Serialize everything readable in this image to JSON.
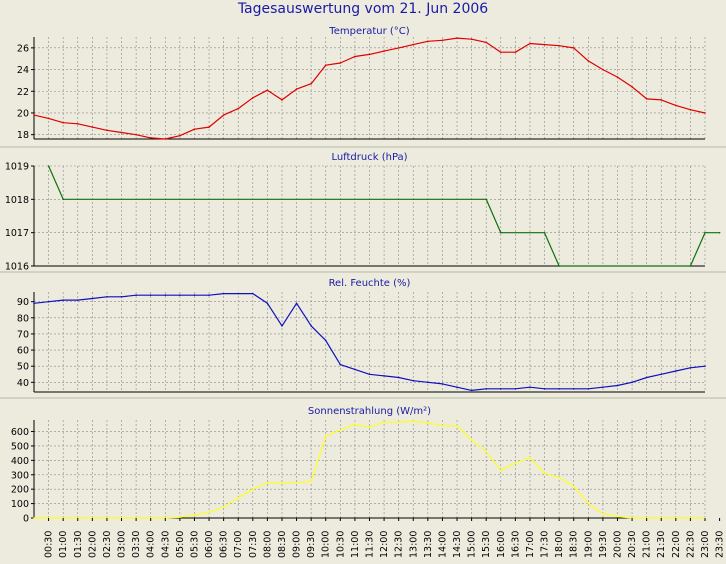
{
  "title": "Tagesauswertung vom 21. Jun 2006",
  "time_labels": [
    "00:30",
    "01:00",
    "01:30",
    "02:00",
    "02:30",
    "03:00",
    "03:30",
    "04:00",
    "04:30",
    "05:00",
    "05:30",
    "06:00",
    "06:30",
    "07:00",
    "07:30",
    "08:00",
    "08:30",
    "09:00",
    "09:30",
    "10:00",
    "10:30",
    "11:00",
    "11:30",
    "12:00",
    "12:30",
    "13:00",
    "13:30",
    "14:00",
    "14:30",
    "15:00",
    "15:30",
    "16:00",
    "16:30",
    "17:00",
    "17:30",
    "18:00",
    "18:30",
    "19:00",
    "19:30",
    "20:00",
    "20:30",
    "21:00",
    "21:30",
    "22:00",
    "22:30",
    "23:00",
    "23:30"
  ],
  "colors": {
    "background": "#ecebde",
    "plot_background": "#ecebde",
    "grid": "#8a8a8a",
    "title": "#1a1aa6"
  },
  "chart_data": [
    {
      "type": "line",
      "title": "Temperatur (°C)",
      "color": "#e00000",
      "ylim": [
        17.6,
        27.0
      ],
      "yticks": [
        18,
        20,
        22,
        24,
        26
      ],
      "x": [
        0,
        1,
        2,
        3,
        4,
        5,
        6,
        7,
        8,
        9,
        10,
        11,
        12,
        13,
        14,
        15,
        16,
        17,
        18,
        19,
        20,
        21,
        22,
        23,
        24,
        25,
        26,
        27,
        28,
        29,
        30,
        31,
        32,
        33,
        34,
        35,
        36,
        37,
        38,
        39,
        40,
        41,
        42,
        43,
        44,
        45,
        46
      ],
      "values": [
        19.8,
        19.5,
        19.1,
        19.0,
        18.7,
        18.4,
        18.2,
        18.0,
        17.7,
        17.6,
        17.9,
        18.5,
        18.7,
        19.8,
        20.4,
        21.4,
        22.1,
        21.2,
        22.2,
        22.7,
        24.4,
        24.6,
        25.2,
        25.4,
        25.7,
        26.0,
        26.3,
        26.6,
        26.7,
        26.9,
        26.8,
        26.5,
        25.6,
        25.6,
        26.4,
        26.3,
        26.2,
        26.0,
        24.8,
        24.0,
        23.3,
        22.4,
        21.3,
        21.2,
        20.7,
        20.3,
        20.0
      ]
    },
    {
      "type": "line",
      "title": "Luftdruck (hPa)",
      "color": "#107010",
      "ylim": [
        1016.0,
        1019.0
      ],
      "yticks": [
        1016,
        1017,
        1018,
        1019
      ],
      "x": [
        1,
        2,
        31,
        32,
        35,
        36,
        45,
        46,
        47
      ],
      "values": [
        1019.0,
        1018.0,
        1018.0,
        1017.0,
        1017.0,
        1016.0,
        1016.0,
        1017.0,
        1017.0
      ]
    },
    {
      "type": "line",
      "title": "Rel. Feuchte (%)",
      "color": "#1010c0",
      "ylim": [
        34,
        96
      ],
      "yticks": [
        40,
        50,
        60,
        70,
        80,
        90
      ],
      "x": [
        0,
        1,
        2,
        3,
        4,
        5,
        6,
        7,
        8,
        9,
        10,
        11,
        12,
        13,
        14,
        15,
        16,
        17,
        18,
        19,
        20,
        21,
        22,
        23,
        24,
        25,
        26,
        27,
        28,
        29,
        30,
        31,
        32,
        33,
        34,
        35,
        36,
        37,
        38,
        39,
        40,
        41,
        42,
        43,
        44,
        45,
        46
      ],
      "values": [
        89,
        90,
        91,
        91,
        92,
        93,
        93,
        94,
        94,
        94,
        94,
        94,
        94,
        95,
        95,
        95,
        89,
        75,
        89,
        75,
        66,
        51,
        48,
        45,
        44,
        43,
        41,
        40,
        39,
        37,
        35,
        36,
        36,
        36,
        37,
        36,
        36,
        36,
        36,
        37,
        38,
        40,
        43,
        45,
        47,
        49,
        50
      ]
    },
    {
      "type": "line",
      "title": "Sonnenstrahlung (W/m²)",
      "color": "#ffff1e",
      "ylim": [
        0,
        680
      ],
      "yticks": [
        0,
        100,
        200,
        300,
        400,
        500,
        600
      ],
      "x": [
        0,
        1,
        2,
        3,
        4,
        5,
        6,
        7,
        8,
        9,
        10,
        11,
        12,
        13,
        14,
        15,
        16,
        17,
        18,
        19,
        20,
        21,
        22,
        23,
        24,
        25,
        26,
        27,
        28,
        29,
        30,
        31,
        32,
        33,
        34,
        35,
        36,
        37,
        38,
        39,
        40,
        41,
        42,
        43,
        44,
        45,
        46
      ],
      "values": [
        0,
        0,
        0,
        0,
        0,
        0,
        0,
        0,
        0,
        0,
        5,
        20,
        40,
        75,
        140,
        200,
        245,
        240,
        245,
        255,
        570,
        610,
        650,
        630,
        665,
        665,
        670,
        660,
        640,
        640,
        540,
        460,
        330,
        380,
        420,
        310,
        280,
        220,
        100,
        30,
        10,
        0,
        0,
        0,
        0,
        0,
        0
      ]
    }
  ]
}
